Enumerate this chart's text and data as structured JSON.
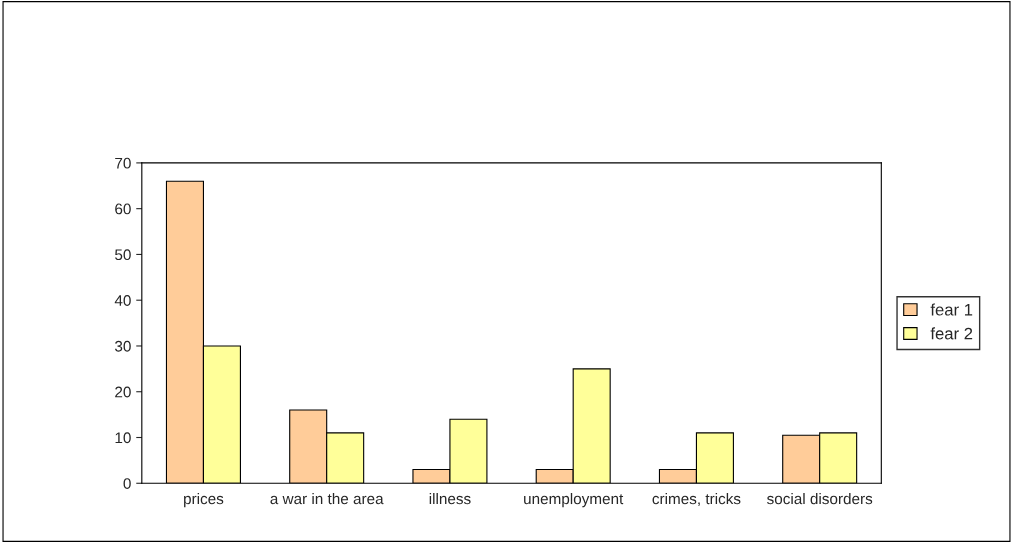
{
  "chart_data": {
    "type": "bar",
    "categories": [
      "prices",
      "a war in the area",
      "illness",
      "unemployment",
      "crimes, tricks",
      "social disorders"
    ],
    "series": [
      {
        "name": "fear 1",
        "color": "#ffcc99",
        "values": [
          66,
          16,
          3,
          3,
          3,
          10.5
        ]
      },
      {
        "name": "fear 2",
        "color": "#ffff99",
        "values": [
          30,
          11,
          14,
          25,
          11,
          11
        ]
      }
    ],
    "ylim": [
      0,
      70
    ],
    "yticks": [
      0,
      10,
      20,
      30,
      40,
      50,
      60,
      70
    ],
    "grid": false,
    "legend": "right"
  }
}
